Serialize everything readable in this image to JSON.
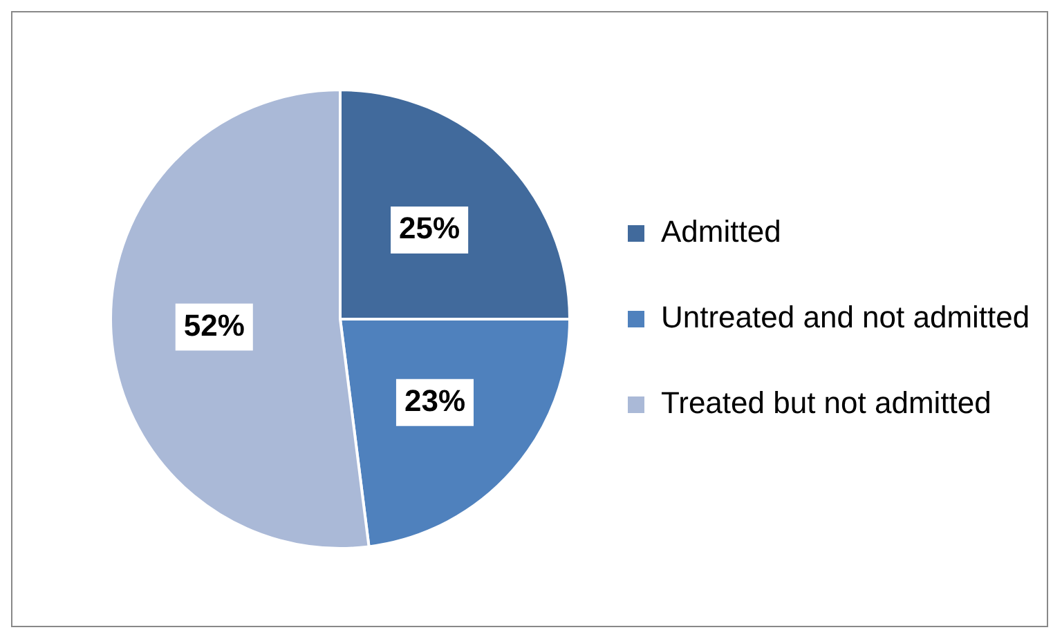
{
  "chart_data": {
    "type": "pie",
    "categories": [
      "Admitted",
      "Untreated and not admitted",
      "Treated but not admitted"
    ],
    "values": [
      25,
      23,
      52
    ],
    "colors": [
      "#416a9c",
      "#4f81bd",
      "#aab9d7"
    ],
    "value_labels": [
      "25%",
      "23%",
      "52%"
    ],
    "legend": "right"
  }
}
